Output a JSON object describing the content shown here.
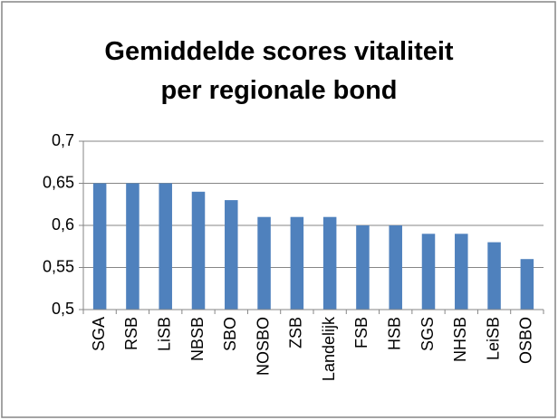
{
  "chart_data": {
    "type": "bar",
    "title": "Gemiddelde scores vitaliteit per regionale bond",
    "categories": [
      "SGA",
      "RSB",
      "LiSB",
      "NBSB",
      "SBO",
      "NOSBO",
      "ZSB",
      "Landelijk",
      "FSB",
      "HSB",
      "SGS",
      "NHSB",
      "LeiSB",
      "OSBO"
    ],
    "values": [
      0.65,
      0.65,
      0.65,
      0.64,
      0.63,
      0.61,
      0.61,
      0.61,
      0.6,
      0.6,
      0.59,
      0.59,
      0.58,
      0.56
    ],
    "color": "#4f81bd",
    "ylim": [
      0.5,
      0.7
    ],
    "yticks": [
      {
        "value": 0.5,
        "label": "0,5"
      },
      {
        "value": 0.55,
        "label": "0,55"
      },
      {
        "value": 0.6,
        "label": "0,6"
      },
      {
        "value": 0.65,
        "label": "0,65"
      },
      {
        "value": 0.7,
        "label": "0,7"
      }
    ],
    "grid": true
  }
}
